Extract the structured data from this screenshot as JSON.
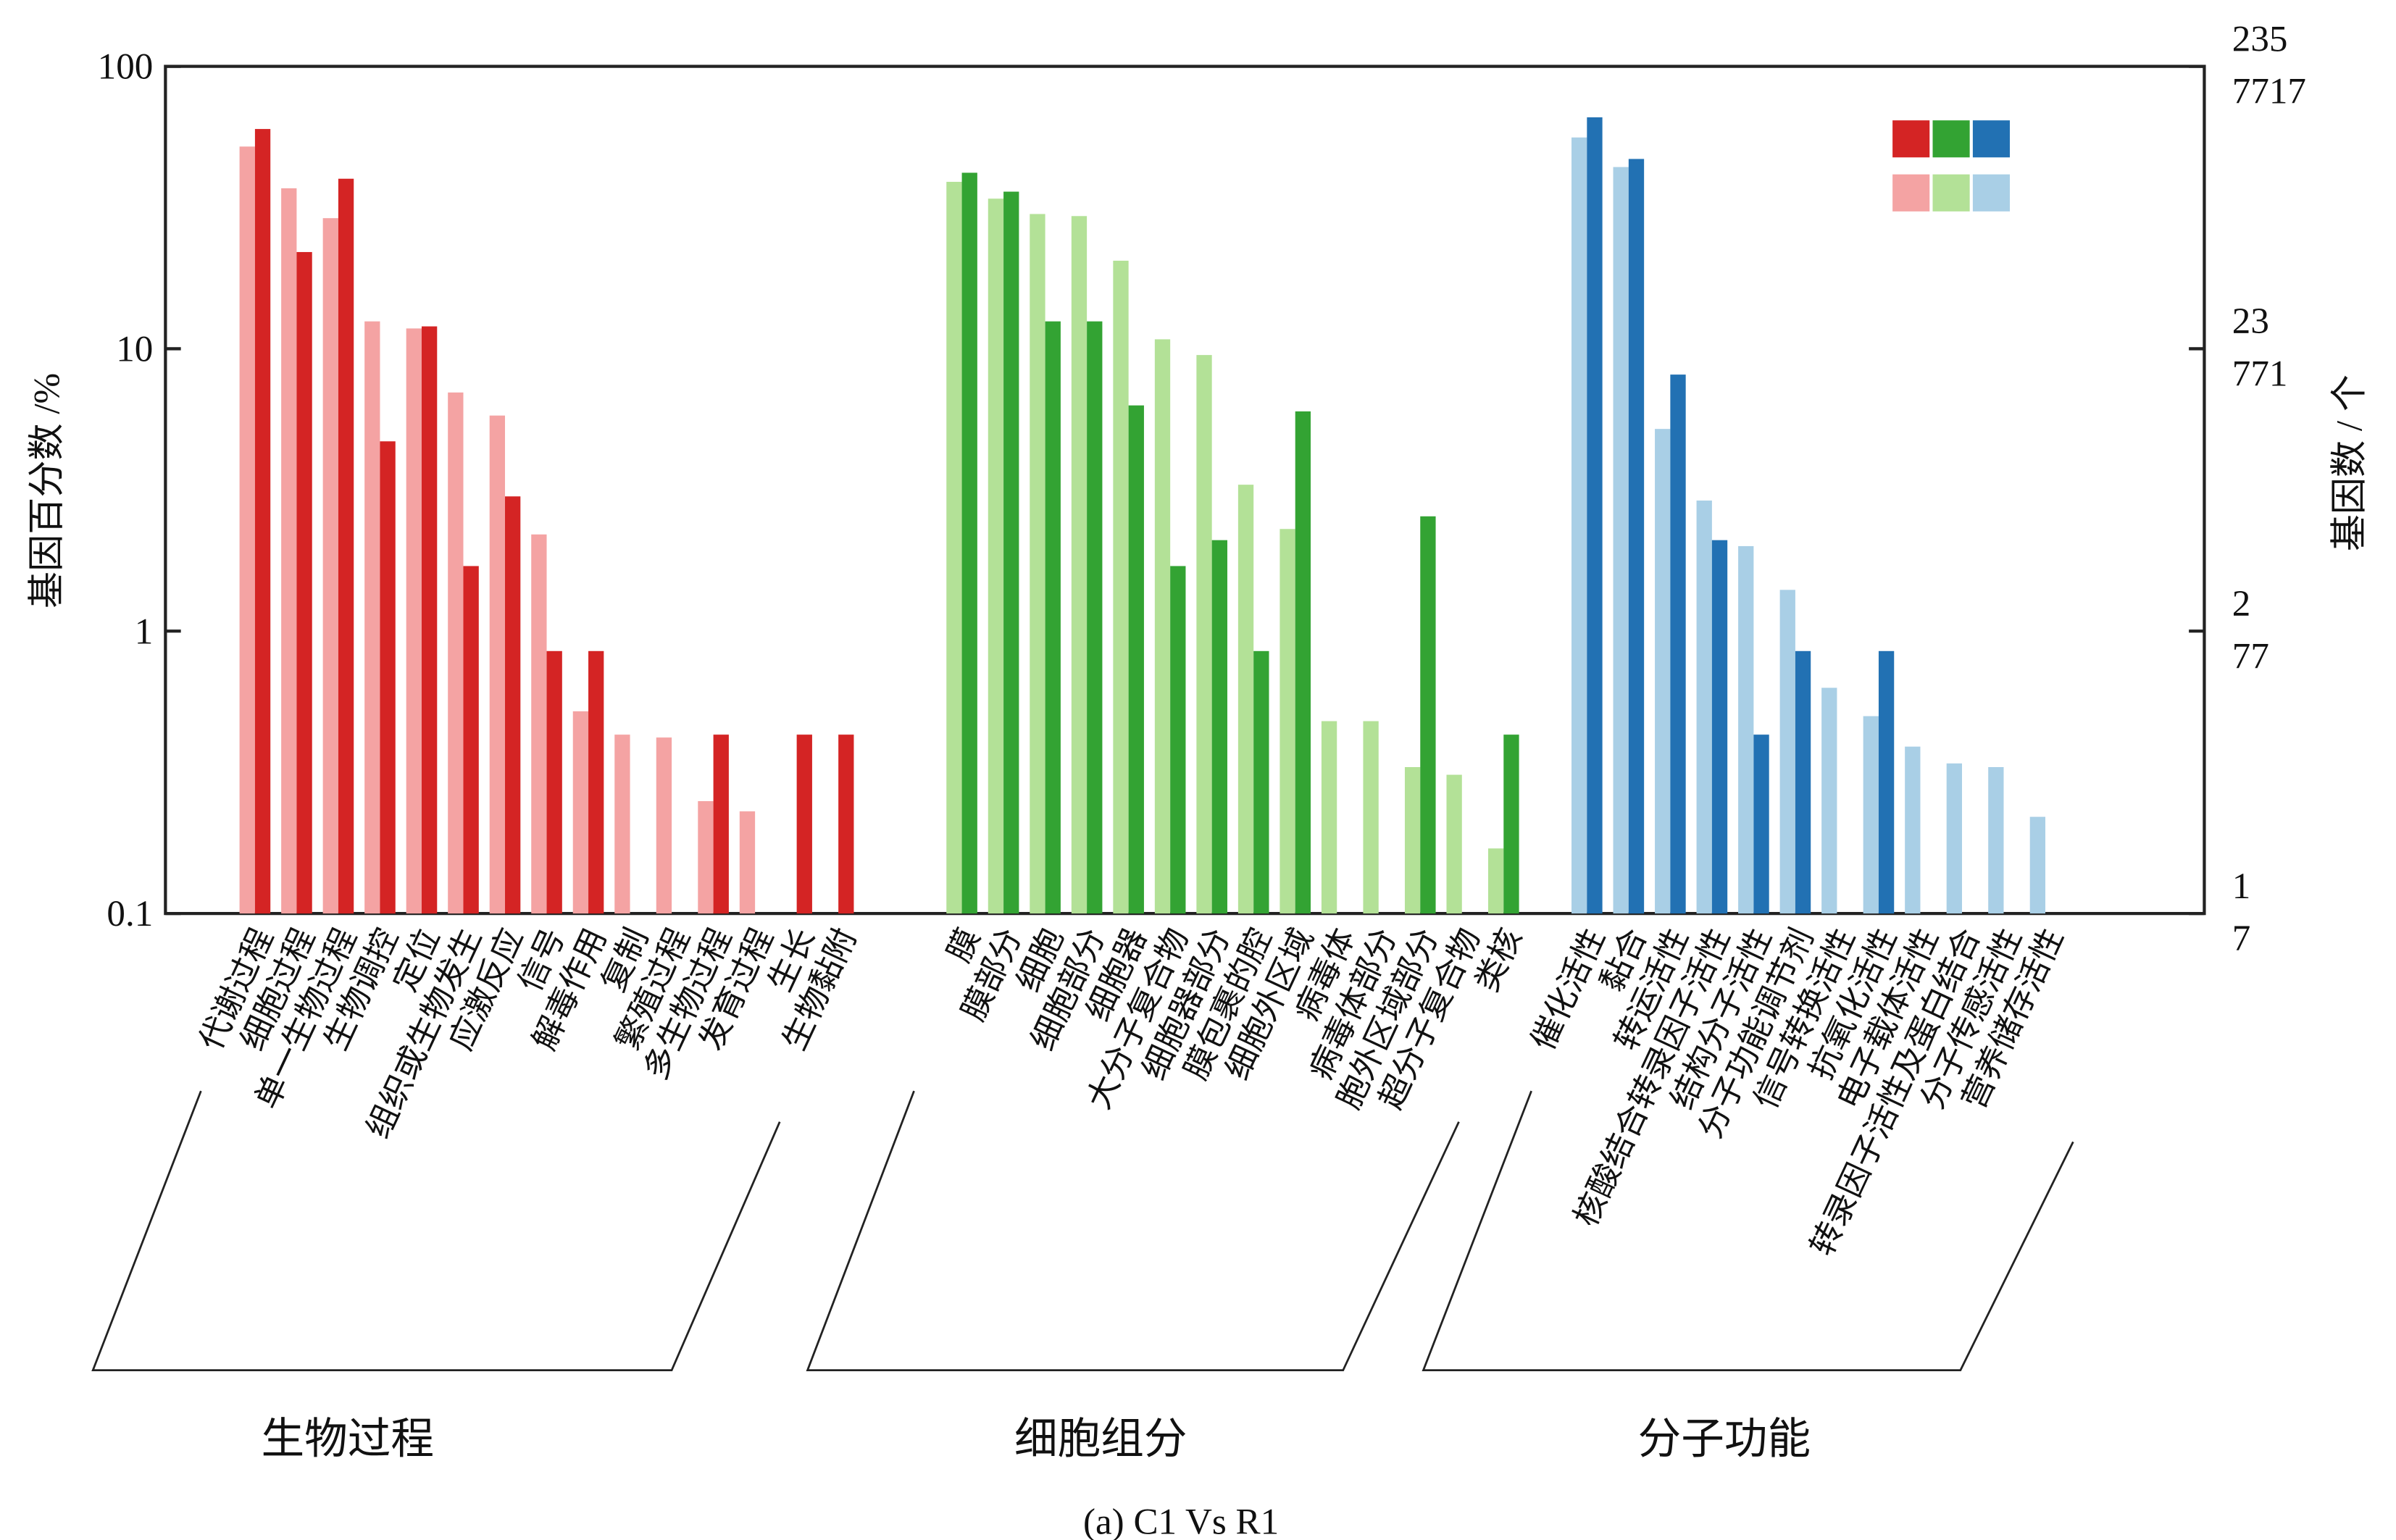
{
  "chart_data": {
    "type": "grouped-bar",
    "ylabel": "基因百分数 /%",
    "y2label": "基因数 / 个",
    "caption": "(a) C1 Vs R1",
    "log_scale": true,
    "ylim": [
      0.1,
      100
    ],
    "yticks": [
      0.1,
      1,
      10,
      100
    ],
    "y2lim": [
      0.1,
      100
    ],
    "y2ticks": [
      {
        "value": 0.1,
        "label": [
          "1",
          "7"
        ]
      },
      {
        "value": 1,
        "label": [
          "2",
          "77"
        ]
      },
      {
        "value": 10,
        "label": [
          "23",
          "771"
        ]
      },
      {
        "value": 100,
        "label": [
          "235",
          "7717"
        ]
      }
    ],
    "groups": [
      {
        "name": "生物过程",
        "categories": [
          "代谢过程",
          "细胞过程",
          "单一生物过程",
          "生物调控",
          "定位",
          "组织或生物发生",
          "应激反应",
          "信号",
          "解毒作用",
          "复制",
          "繁殖过程",
          "多生物过程",
          "发育过程",
          "生长",
          "生物黏附"
        ],
        "series": [
          {
            "color": "#f4a3a3",
            "values": [
              52,
              37,
              29,
              12.5,
              11.8,
              7,
              5.8,
              2.2,
              0.52,
              0.43,
              0.42,
              0.25,
              0.23,
              null,
              null
            ]
          },
          {
            "color": "#d42424",
            "values": [
              60,
              22,
              40,
              4.7,
              12,
              1.7,
              3,
              0.85,
              0.85,
              null,
              null,
              0.43,
              null,
              0.43,
              0.43
            ]
          }
        ]
      },
      {
        "name": "细胞组分",
        "categories": [
          "膜",
          "膜部分",
          "细胞",
          "细胞部分",
          "细胞器",
          "大分子复合物",
          "细胞器部分",
          "膜包裹的腔",
          "细胞外区域",
          "病毒体",
          "病毒体部分",
          "胞外区域部分",
          "超分子复合物",
          "类核"
        ],
        "series": [
          {
            "color": "#b3e197",
            "values": [
              39,
              34,
              30,
              29.5,
              20.5,
              10.8,
              9.5,
              3.3,
              2.3,
              0.48,
              0.48,
              0.33,
              0.31,
              0.17
            ]
          },
          {
            "color": "#33a333",
            "values": [
              42,
              36,
              12.5,
              12.5,
              6.3,
              1.7,
              2.1,
              0.85,
              6,
              null,
              null,
              2.55,
              null,
              0.43
            ]
          }
        ]
      },
      {
        "name": "分子功能",
        "categories": [
          "催化活性",
          "黏合",
          "转运活性",
          "核酸结合转录因子活性",
          "结构分子活性",
          "分子功能调节剂",
          "信号转换活性",
          "抗氧化活性",
          "电子载体活性",
          "转录因子活性及蛋白结合",
          "分子传感活性",
          "营养储存活性"
        ],
        "series": [
          {
            "color": "#a9cfe6",
            "values": [
              56,
              44,
              5.2,
              2.9,
              2.0,
              1.4,
              0.63,
              0.5,
              0.39,
              0.34,
              0.33,
              0.22
            ]
          },
          {
            "color": "#2271b3",
            "values": [
              66,
              47,
              8.1,
              2.1,
              0.43,
              0.85,
              null,
              0.85,
              null,
              null,
              null,
              null
            ]
          }
        ]
      }
    ]
  }
}
